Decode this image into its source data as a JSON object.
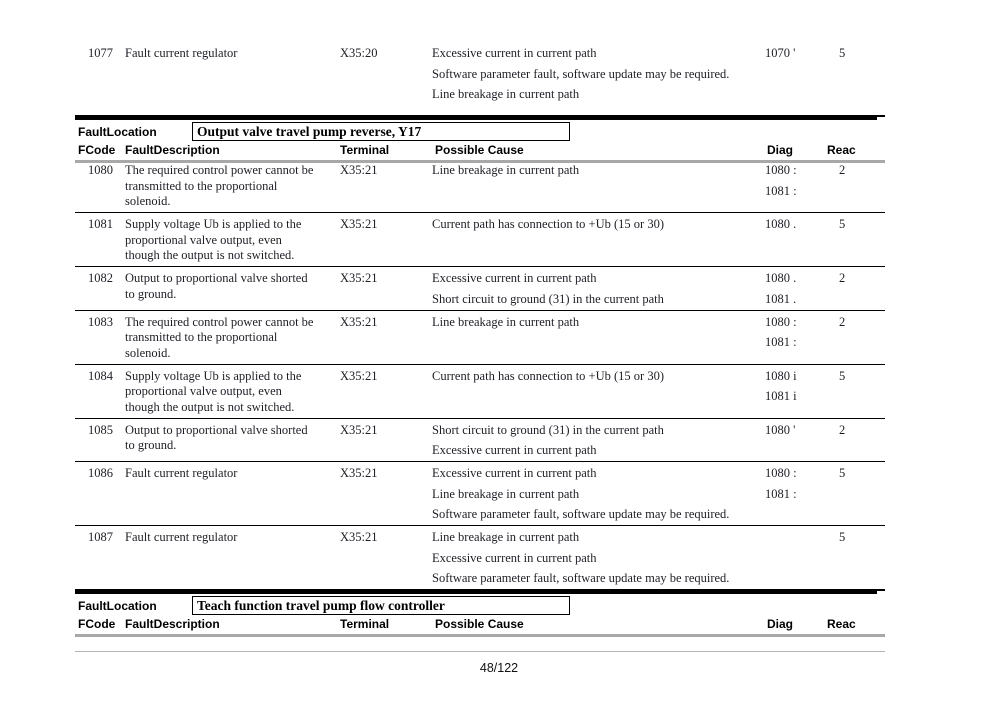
{
  "colors": {
    "section_bar": "#000000",
    "header_rule": "#a8a8a8",
    "footer_rule": "#b5b5b5",
    "body_text": "#1e1e26"
  },
  "lead_rows": [
    {
      "fcode": "1077",
      "description": [
        "Fault current regulator"
      ],
      "terminal": "X35:20",
      "causes": [
        "Excessive current in current path",
        "Software parameter fault, software update may be required.",
        "Line breakage in current path"
      ],
      "diag": [
        "1070 '"
      ],
      "reac": "5"
    }
  ],
  "sections": [
    {
      "location_label": "FaultLocation",
      "location_value": "Output valve travel pump reverse, Y17",
      "columns": {
        "fcode": "FCode",
        "description": "FaultDescription",
        "terminal": "Terminal",
        "cause": "Possible Cause",
        "diag": "Diag",
        "reac": "Reac"
      },
      "rows": [
        {
          "fcode": "1080",
          "description": [
            "The required control power cannot be",
            "transmitted to the proportional",
            "solenoid."
          ],
          "terminal": "X35:21",
          "causes": [
            "Line breakage in current path"
          ],
          "diag": [
            "1080 :",
            "1081 :"
          ],
          "reac": "2"
        },
        {
          "fcode": "1081",
          "description": [
            "Supply voltage Ub is applied to the",
            "proportional valve output, even",
            "though the output is not switched."
          ],
          "terminal": "X35:21",
          "causes": [
            "Current path has connection to +Ub (15 or 30)"
          ],
          "diag": [
            "1080 ."
          ],
          "reac": "5"
        },
        {
          "fcode": "1082",
          "description": [
            "Output to proportional valve shorted",
            "to ground."
          ],
          "terminal": "X35:21",
          "causes": [
            "Excessive current in current path",
            "Short circuit to ground (31) in the current path"
          ],
          "diag": [
            "1080 .",
            "1081 ."
          ],
          "reac": "2"
        },
        {
          "fcode": "1083",
          "description": [
            "The required control power cannot be",
            "transmitted to the proportional",
            "solenoid."
          ],
          "terminal": "X35:21",
          "causes": [
            "Line breakage in current path"
          ],
          "diag": [
            "1080 :",
            "1081 :"
          ],
          "reac": "2"
        },
        {
          "fcode": "1084",
          "description": [
            "Supply voltage Ub is applied to the",
            "proportional valve output, even",
            "though the output is not switched."
          ],
          "terminal": "X35:21",
          "causes": [
            "Current path has connection to +Ub (15 or 30)"
          ],
          "diag": [
            "1080 i",
            "1081 i"
          ],
          "reac": "5"
        },
        {
          "fcode": "1085",
          "description": [
            "Output to proportional valve shorted",
            "to ground."
          ],
          "terminal": "X35:21",
          "causes": [
            "Short circuit to ground (31) in the current path",
            "Excessive current in current path"
          ],
          "diag": [
            "1080 '"
          ],
          "reac": "2"
        },
        {
          "fcode": "1086",
          "description": [
            "Fault current regulator"
          ],
          "terminal": "X35:21",
          "causes": [
            "Excessive current in current path",
            "Line breakage in current path",
            "Software parameter fault, software update may be required."
          ],
          "diag": [
            "1080 :",
            "1081 :"
          ],
          "reac": "5"
        },
        {
          "fcode": "1087",
          "description": [
            "Fault current regulator"
          ],
          "terminal": "X35:21",
          "causes": [
            "Line breakage in current path",
            "Excessive current in current path",
            "Software parameter fault, software update may be required."
          ],
          "diag": [],
          "reac": "5"
        }
      ]
    },
    {
      "location_label": "FaultLocation",
      "location_value": "Teach function travel pump flow controller",
      "columns": {
        "fcode": "FCode",
        "description": "FaultDescription",
        "terminal": "Terminal",
        "cause": "Possible Cause",
        "diag": "Diag",
        "reac": "Reac"
      },
      "rows": []
    }
  ],
  "footer": {
    "page_number": "48/122"
  }
}
